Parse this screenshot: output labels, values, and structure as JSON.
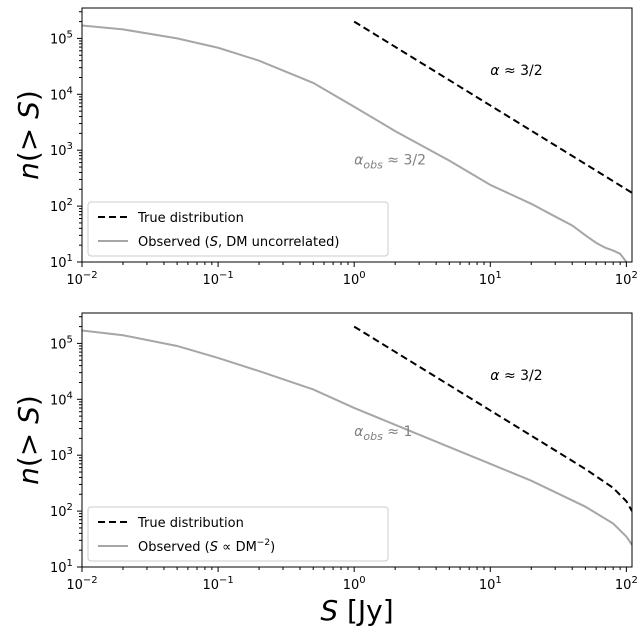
{
  "chart_data": [
    {
      "type": "line",
      "xscale": "log",
      "yscale": "log",
      "xlim": [
        0.01,
        110
      ],
      "ylim": [
        10,
        350000
      ],
      "xlabel": "",
      "ylabel": "n(>S)",
      "x_ticks": [
        {
          "value": 0.01,
          "base": "10",
          "exp": "−2"
        },
        {
          "value": 0.1,
          "base": "10",
          "exp": "−1"
        },
        {
          "value": 1,
          "base": "10",
          "exp": "0"
        },
        {
          "value": 10,
          "base": "10",
          "exp": "1"
        },
        {
          "value": 100,
          "base": "10",
          "exp": "2"
        }
      ],
      "y_ticks": [
        {
          "value": 10,
          "base": "10",
          "exp": "1"
        },
        {
          "value": 100,
          "base": "10",
          "exp": "2"
        },
        {
          "value": 1000,
          "base": "10",
          "exp": "3"
        },
        {
          "value": 10000,
          "base": "10",
          "exp": "4"
        },
        {
          "value": 100000,
          "base": "10",
          "exp": "5"
        }
      ],
      "legend_position": "lower-left",
      "grid": false,
      "series": [
        {
          "name": "True distribution",
          "style": "dashed",
          "color": "#000000",
          "x": [
            1,
            2,
            5,
            10,
            20,
            50,
            110
          ],
          "y": [
            200000,
            70700,
            17900,
            6320,
            2240,
            566,
            173
          ]
        },
        {
          "name": "Observed (S, DM uncorrelated)",
          "style": "solid",
          "color": "#a6a6a6",
          "x": [
            0.01,
            0.02,
            0.05,
            0.1,
            0.2,
            0.5,
            1,
            2,
            5,
            10,
            20,
            30,
            40,
            50,
            60,
            70,
            80,
            90,
            100
          ],
          "y": [
            170000,
            145000,
            100000,
            68000,
            40000,
            16000,
            6000,
            2200,
            650,
            240,
            110,
            65,
            45,
            30,
            22,
            18,
            16,
            14,
            10
          ]
        }
      ],
      "legend": [
        {
          "label": "True distribution"
        },
        {
          "label": "Observed (",
          "label_italic": "S",
          "label_rest": ", DM uncorrelated)"
        }
      ],
      "annotations": [
        {
          "prefix": "α",
          "sub": "",
          "text": " ≈ 3/2",
          "x": 10,
          "y": 22000,
          "color": "#000000"
        },
        {
          "prefix": "α",
          "sub": "obs",
          "text": " ≈ 3/2",
          "x": 1,
          "y": 550,
          "color": "#808080"
        }
      ]
    },
    {
      "type": "line",
      "xscale": "log",
      "yscale": "log",
      "xlim": [
        0.01,
        110
      ],
      "ylim": [
        10,
        350000
      ],
      "xlabel": "S [Jy]",
      "ylabel": "n(>S)",
      "x_ticks": [
        {
          "value": 0.01,
          "base": "10",
          "exp": "−2"
        },
        {
          "value": 0.1,
          "base": "10",
          "exp": "−1"
        },
        {
          "value": 1,
          "base": "10",
          "exp": "0"
        },
        {
          "value": 10,
          "base": "10",
          "exp": "1"
        },
        {
          "value": 100,
          "base": "10",
          "exp": "2"
        }
      ],
      "y_ticks": [
        {
          "value": 10,
          "base": "10",
          "exp": "1"
        },
        {
          "value": 100,
          "base": "10",
          "exp": "2"
        },
        {
          "value": 1000,
          "base": "10",
          "exp": "3"
        },
        {
          "value": 10000,
          "base": "10",
          "exp": "4"
        },
        {
          "value": 100000,
          "base": "10",
          "exp": "5"
        }
      ],
      "legend_position": "lower-left",
      "grid": false,
      "series": [
        {
          "name": "True distribution",
          "style": "dashed",
          "color": "#000000",
          "x": [
            1,
            2,
            5,
            10,
            20,
            50,
            80,
            100,
            110
          ],
          "y": [
            200000,
            70700,
            17900,
            6320,
            2240,
            566,
            260,
            150,
            100
          ]
        },
        {
          "name": "Observed (S ∝ DM⁻²)",
          "style": "solid",
          "color": "#a6a6a6",
          "x": [
            0.01,
            0.02,
            0.05,
            0.1,
            0.2,
            0.5,
            1,
            2,
            5,
            10,
            20,
            50,
            80,
            100,
            110
          ],
          "y": [
            170000,
            140000,
            90000,
            55000,
            32000,
            15000,
            7000,
            3500,
            1400,
            700,
            350,
            120,
            60,
            35,
            25
          ]
        }
      ],
      "legend": [
        {
          "label": "True distribution"
        },
        {
          "label": "Observed (",
          "label_italic": "S",
          "label_rest": " ∝ DM",
          "label_sup": "−2",
          "label_end": ")"
        }
      ],
      "annotations": [
        {
          "prefix": "α",
          "sub": "",
          "text": " ≈ 3/2",
          "x": 10,
          "y": 22000,
          "color": "#000000"
        },
        {
          "prefix": "α",
          "sub": "obs",
          "text": " ≈ 1",
          "x": 1,
          "y": 2200,
          "color": "#808080"
        }
      ]
    }
  ]
}
